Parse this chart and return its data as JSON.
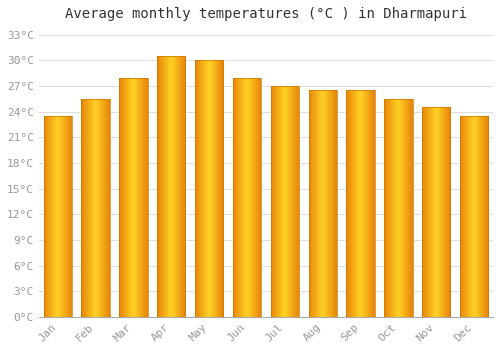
{
  "title": "Average monthly temperatures (°C ) in Dharmapuri",
  "months": [
    "Jan",
    "Feb",
    "Mar",
    "Apr",
    "May",
    "Jun",
    "Jul",
    "Aug",
    "Sep",
    "Oct",
    "Nov",
    "Dec"
  ],
  "values": [
    23.5,
    25.5,
    28.0,
    30.5,
    30.0,
    28.0,
    27.0,
    26.5,
    26.5,
    25.5,
    24.5,
    23.5
  ],
  "bar_color_left": "#E8860A",
  "bar_color_mid": "#FFD045",
  "bar_color_right": "#FFA500",
  "background_color": "#FFFFFF",
  "grid_color": "#DDDDDD",
  "ylim": [
    0,
    34
  ],
  "yticks": [
    0,
    3,
    6,
    9,
    12,
    15,
    18,
    21,
    24,
    27,
    30,
    33
  ],
  "ytick_labels": [
    "0°C",
    "3°C",
    "6°C",
    "9°C",
    "12°C",
    "15°C",
    "18°C",
    "21°C",
    "24°C",
    "27°C",
    "30°C",
    "33°C"
  ],
  "title_fontsize": 10,
  "tick_fontsize": 8,
  "font_family": "monospace",
  "bar_width": 0.75
}
